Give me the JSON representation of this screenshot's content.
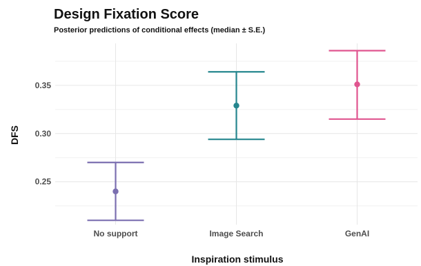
{
  "chart_data": {
    "type": "errorbar",
    "title": "Design Fixation Score",
    "subtitle": "Posterior predictions of conditional effects (median ± S.E.)",
    "xlabel": "Inspiration stimulus",
    "ylabel": "DFS",
    "categories": [
      "No support",
      "Image Search",
      "GenAI"
    ],
    "points": [
      {
        "category": "No support",
        "median": 0.24,
        "lower": 0.21,
        "upper": 0.27,
        "color": "#7b6fb0"
      },
      {
        "category": "Image Search",
        "median": 0.329,
        "lower": 0.294,
        "upper": 0.364,
        "color": "#25868e"
      },
      {
        "category": "GenAI",
        "median": 0.351,
        "lower": 0.315,
        "upper": 0.386,
        "color": "#e0558f"
      }
    ],
    "yticks": [
      0.25,
      0.3,
      0.35
    ],
    "ytick_labels": [
      "0.25",
      "0.30",
      "0.35"
    ],
    "ylim": [
      0.2055,
      0.3935
    ],
    "grid": true,
    "legend": "none"
  }
}
